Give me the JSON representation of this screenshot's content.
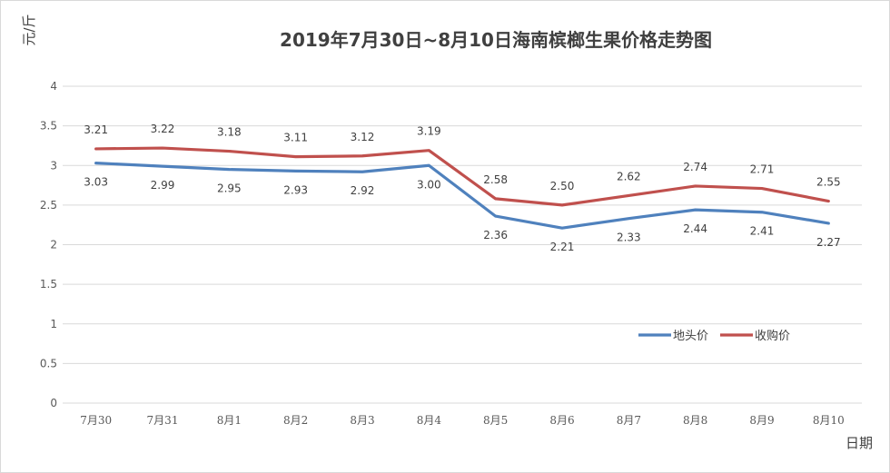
{
  "chart_data": {
    "type": "line",
    "title": "2019年7月30日~8月10日海南槟榔生果价格走势图",
    "ylabel": "元/斤",
    "xlabel": "日期",
    "categories": [
      "7月30",
      "7月31",
      "8月1",
      "8月2",
      "8月3",
      "8月4",
      "8月5",
      "8月6",
      "8月7",
      "8月8",
      "8月9",
      "8月10"
    ],
    "ylim": [
      0,
      4
    ],
    "yticks": [
      "0",
      "0.5",
      "1",
      "1.5",
      "2",
      "2.5",
      "3",
      "3.5",
      "4"
    ],
    "grid": true,
    "legend_position": "right",
    "series": [
      {
        "name": "地头价",
        "color": "#4F81BD",
        "values": [
          3.03,
          2.99,
          2.95,
          2.93,
          2.92,
          3.0,
          2.36,
          2.21,
          2.33,
          2.44,
          2.41,
          2.27
        ],
        "labels": [
          "3.03",
          "2.99",
          "2.95",
          "2.93",
          "2.92",
          "3.00",
          "2.36",
          "2.21",
          "2.33",
          "2.44",
          "2.41",
          "2.27"
        ]
      },
      {
        "name": "收购价",
        "color": "#C0504D",
        "values": [
          3.21,
          3.22,
          3.18,
          3.11,
          3.12,
          3.19,
          2.58,
          2.5,
          2.62,
          2.74,
          2.71,
          2.55
        ],
        "labels": [
          "3.21",
          "3.22",
          "3.18",
          "3.11",
          "3.12",
          "3.19",
          "2.58",
          "2.50",
          "2.62",
          "2.74",
          "2.71",
          "2.55"
        ]
      }
    ]
  }
}
